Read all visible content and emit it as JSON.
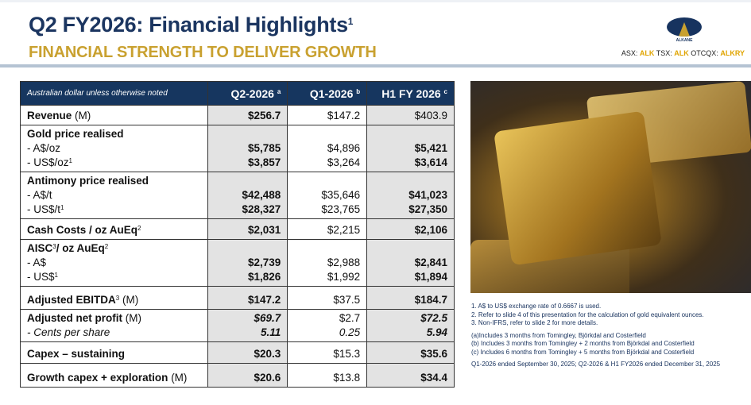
{
  "header": {
    "title": "Q2 FY2026: Financial Highlights",
    "title_sup": "1",
    "subtitle": "FINANCIAL STRENGTH TO DELIVER GROWTH",
    "logo": {
      "name": "ALKANE",
      "sub": "RESOURCES LTD"
    },
    "ticker": {
      "asx_label": "ASX:",
      "asx": "ALK",
      "tsx_label": "TSX:",
      "tsx": "ALK",
      "otc_label": "OTCQX:",
      "otc": "ALKRY"
    }
  },
  "table": {
    "header": {
      "label": "Australian dollar unless otherwise noted",
      "cols": [
        {
          "label": "Q2-2026",
          "sup": "a"
        },
        {
          "label": "Q1-2026",
          "sup": "b"
        },
        {
          "label": "H1 FY 2026",
          "sup": "c"
        }
      ]
    },
    "rows": [
      {
        "label": "Revenue",
        "unit": "(M)",
        "values": [
          "$256.7",
          "$147.2",
          "$403.9"
        ]
      },
      {
        "label": "Gold price realised",
        "sub": [
          {
            "label": "- A$/oz",
            "values": [
              "$5,785",
              "$4,896",
              "$5,421"
            ]
          },
          {
            "label": "- US$/oz",
            "sup": "1",
            "values": [
              "$3,857",
              "$3,264",
              "$3,614"
            ]
          }
        ]
      },
      {
        "label": "Antimony price realised",
        "sub": [
          {
            "label": "- A$/t",
            "values": [
              "$42,488",
              "$35,646",
              "$41,023"
            ]
          },
          {
            "label": "- US$/t",
            "sup": "1",
            "values": [
              "$28,327",
              "$23,765",
              "$27,350"
            ]
          }
        ]
      },
      {
        "label": "Cash Costs / oz AuEq",
        "sup": "2",
        "values": [
          "$2,031",
          "$2,215",
          "$2,106"
        ]
      },
      {
        "label": "AISC",
        "sup": "3",
        "label2": "/ oz AuEq",
        "sup2": "2",
        "sub": [
          {
            "label": "- A$",
            "values": [
              "$2,739",
              "$2,988",
              "$2,841"
            ]
          },
          {
            "label": "- US$",
            "sup": "1",
            "values": [
              "$1,826",
              "$1,992",
              "$1,894"
            ]
          }
        ]
      },
      {
        "label": "Adjusted EBITDA",
        "sup": "3",
        "unit": "(M)",
        "values": [
          "$147.2",
          "$37.5",
          "$184.7"
        ]
      },
      {
        "label": "Adjusted net profit",
        "unit": "(M)",
        "values": [
          "$69.7",
          "$2.7",
          "$72.5"
        ],
        "sub_label": "- Cents per share",
        "sub_values": [
          "5.11",
          "0.25",
          "5.94"
        ]
      },
      {
        "label": "Capex – sustaining",
        "values": [
          "$20.3",
          "$15.3",
          "$35.6"
        ]
      },
      {
        "label": "Growth capex + exploration",
        "unit": "(M)",
        "values": [
          "$20.6",
          "$13.8",
          "$34.4"
        ]
      }
    ]
  },
  "notes": {
    "numbered": [
      "1. A$ to US$ exchange rate of 0.6667 is used.",
      "2. Refer to slide 4 of this presentation for the calculation of gold equivalent ounces.",
      "3. Non-IFRS, refer to slide 2 for more details."
    ],
    "lettered": [
      "(a)Includes 3 months from Tomingley, Björkdal and Costerfield",
      "(b) Includes 3 months from Tomingley + 2 months from Björkdal and Costerfield",
      "(c) Includes 6 months from Tomingley + 5 months from Björkdal and Costerfield"
    ],
    "periods": "Q1-2026 ended September 30, 2025;  Q2-2026 & H1 FY2026 ended December 31, 2025"
  }
}
